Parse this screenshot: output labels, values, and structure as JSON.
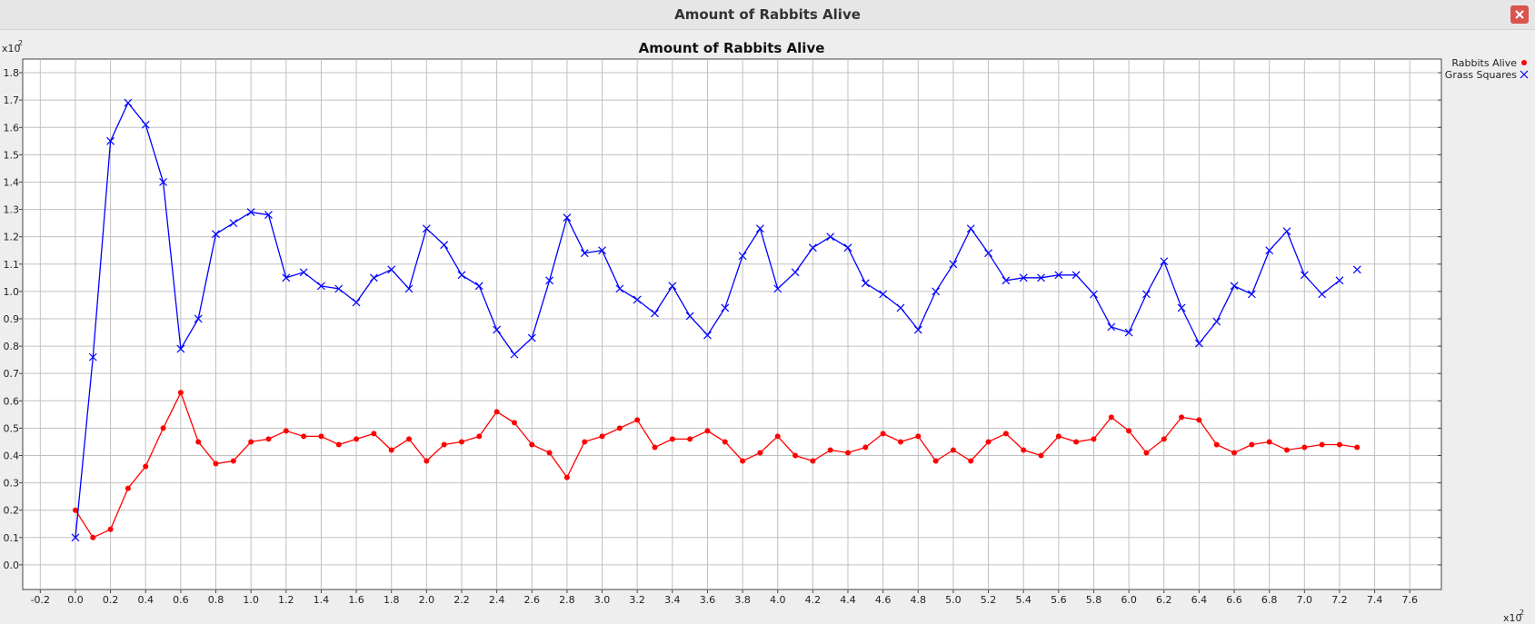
{
  "window": {
    "title": "Amount of Rabbits Alive",
    "close_icon": "close-icon",
    "close_color": "#d9534f"
  },
  "chart_data": {
    "type": "line",
    "title": "Amount of Rabbits Alive",
    "xlabel": "",
    "ylabel": "",
    "x_multiplier_label": "x10",
    "x_multiplier_exp": "2",
    "y_multiplier_label": "x10",
    "y_multiplier_exp": "2",
    "xlim": [
      -0.3,
      7.78
    ],
    "ylim": [
      -0.09,
      1.85
    ],
    "x_ticks": [
      "-0.2",
      "0.0",
      "0.2",
      "0.4",
      "0.6",
      "0.8",
      "1.0",
      "1.2",
      "1.4",
      "1.6",
      "1.8",
      "2.0",
      "2.2",
      "2.4",
      "2.6",
      "2.8",
      "3.0",
      "3.2",
      "3.4",
      "3.6",
      "3.8",
      "4.0",
      "4.2",
      "4.4",
      "4.6",
      "4.8",
      "5.0",
      "5.2",
      "5.4",
      "5.6",
      "5.8",
      "6.0",
      "6.2",
      "6.4",
      "6.6",
      "6.8",
      "7.0",
      "7.2",
      "7.4",
      "7.6"
    ],
    "y_ticks": [
      "0.0",
      "0.1",
      "0.2",
      "0.3",
      "0.4",
      "0.5",
      "0.6",
      "0.7",
      "0.8",
      "0.9",
      "1.0",
      "1.1",
      "1.2",
      "1.3",
      "1.4",
      "1.5",
      "1.6",
      "1.7",
      "1.8"
    ],
    "grid": true,
    "legend_position": "top-right",
    "x_start": 0.0,
    "x_step": 0.1,
    "series": [
      {
        "name": "Rabbits Alive",
        "color": "#ff0000",
        "marker": "circle",
        "values": [
          0.2,
          0.1,
          0.13,
          0.28,
          0.36,
          0.5,
          0.63,
          0.45,
          0.37,
          0.38,
          0.45,
          0.46,
          0.49,
          0.47,
          0.47,
          0.44,
          0.46,
          0.48,
          0.42,
          0.46,
          0.38,
          0.44,
          0.45,
          0.47,
          0.56,
          0.52,
          0.44,
          0.41,
          0.32,
          0.45,
          0.47,
          0.5,
          0.53,
          0.43,
          0.46,
          0.46,
          0.49,
          0.45,
          0.38,
          0.41,
          0.47,
          0.4,
          0.38,
          0.42,
          0.41,
          0.43,
          0.48,
          0.45,
          0.47,
          0.38,
          0.42,
          0.38,
          0.45,
          0.48,
          0.42,
          0.4,
          0.47,
          0.45,
          0.46,
          0.54,
          0.49,
          0.41,
          0.46,
          0.54,
          0.53,
          0.44,
          0.41,
          0.44,
          0.45,
          0.42,
          0.43,
          0.44,
          0.44,
          0.43
        ]
      },
      {
        "name": "Grass Squares",
        "color": "#0000ff",
        "marker": "x",
        "values": [
          0.1,
          0.76,
          1.55,
          1.69,
          1.61,
          1.4,
          0.79,
          0.9,
          1.21,
          1.25,
          1.29,
          1.28,
          1.05,
          1.07,
          1.02,
          1.01,
          0.96,
          1.05,
          1.08,
          1.01,
          1.23,
          1.17,
          1.06,
          1.02,
          0.86,
          0.77,
          0.83,
          1.04,
          1.27,
          1.14,
          1.15,
          1.01,
          0.97,
          0.92,
          1.02,
          0.91,
          0.84,
          0.94,
          1.13,
          1.23,
          1.01,
          1.07,
          1.16,
          1.2,
          1.16,
          1.03,
          0.99,
          0.94,
          0.86,
          1.0,
          1.1,
          1.23,
          1.14,
          1.04,
          1.05,
          1.05,
          1.06,
          1.06,
          0.99,
          0.87,
          0.85,
          0.99,
          1.11,
          0.94,
          0.81,
          0.89,
          1.02,
          0.99,
          1.15,
          1.22,
          1.06,
          0.99,
          1.04,
          1.08
        ]
      }
    ]
  }
}
